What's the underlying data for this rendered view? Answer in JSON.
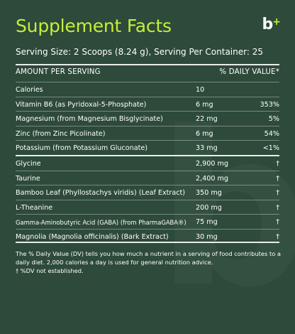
{
  "panel": {
    "title": "Supplement Facts",
    "logo_text": "b",
    "logo_plus": "+",
    "serving": "Serving Size: 2 Scoops (8.24 g), Serving Per Container: 25",
    "header_left": "AMOUNT PER SERVING",
    "header_right": "% DAILY VALUE*"
  },
  "nutrients": [
    {
      "name": "Calories",
      "amount": "10",
      "dv": ""
    },
    {
      "name": "Vitamin B6 (as Pyridoxal-5-Phosphate)",
      "amount": "6 mg",
      "dv": "353%"
    },
    {
      "name": "Magnesium (from Magnesium Bisglycinate)",
      "amount": "22 mg",
      "dv": "5%"
    },
    {
      "name": "Zinc (from Zinc Picolinate)",
      "amount": "6 mg",
      "dv": "54%"
    },
    {
      "name": "Potassium (from Potassium Gluconate)",
      "amount": "33 mg",
      "dv": "<1%"
    }
  ],
  "other_ingredients": [
    {
      "name": "Glycine",
      "amount": "2,900 mg",
      "dv": "†"
    },
    {
      "name": "Taurine",
      "amount": "2,400 mg",
      "dv": "†"
    },
    {
      "name": "Bamboo Leaf (Phyllostachys viridis) (Leaf Extract)",
      "amount": "350 mg",
      "dv": "†"
    },
    {
      "name": "L-Theanine",
      "amount": "200 mg",
      "dv": "†"
    },
    {
      "name": "Gamma-Aminobutyric Acid (GABA) (from PharmaGABA®)",
      "amount": "75 mg",
      "dv": "†"
    },
    {
      "name": "Magnolia (Magnolia officinalis) (Bark Extract)",
      "amount": "30 mg",
      "dv": "†"
    }
  ],
  "footnote": {
    "dv_note": "The % Daily Value (DV) tells you how much a nutrient in a serving of food contributes to a daily diet. 2,000 calories a day is used for general nutrition advice.",
    "dagger_note": "† %DV not established."
  },
  "colors": {
    "background": "#2d4a3a",
    "accent": "#c6ee3a",
    "text": "#ffffff"
  }
}
